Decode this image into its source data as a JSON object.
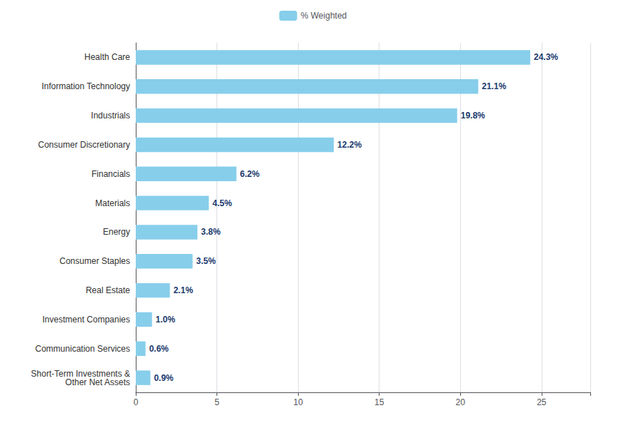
{
  "chart_data": {
    "type": "bar",
    "orientation": "horizontal",
    "categories": [
      "Short-Term Investments &\nOther Net Assets",
      "Communication Services",
      "Investment Companies",
      "Real Estate",
      "Consumer Staples",
      "Energy",
      "Materials",
      "Financials",
      "Consumer Discretionary",
      "Industrials",
      "Information Technology",
      "Health Care"
    ],
    "series": [
      {
        "name": "% Weighted",
        "color": "#87CEEB",
        "values": [
          0.9,
          0.6,
          1.0,
          2.1,
          3.5,
          3.8,
          4.5,
          6.2,
          12.2,
          19.8,
          21.1,
          24.3
        ],
        "value_labels": [
          "0.9%",
          "0.6%",
          "1.0%",
          "2.1%",
          "3.5%",
          "3.8%",
          "4.5%",
          "6.2%",
          "12.2%",
          "19.8%",
          "21.1%",
          "24.3%"
        ]
      }
    ],
    "xlim": [
      0,
      28
    ],
    "xticks": [
      0,
      5,
      10,
      15,
      20,
      25
    ],
    "grid": true,
    "legend": "top",
    "data_labels": true
  }
}
